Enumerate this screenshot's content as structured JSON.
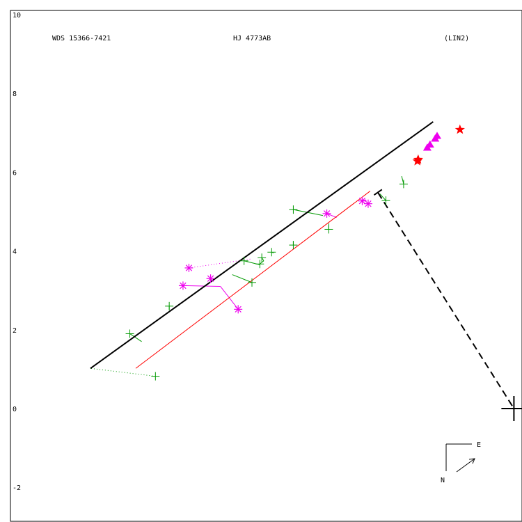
{
  "header": {
    "left": "WDS 15366-7421",
    "center": "HJ 4773AB",
    "right": "(LIN2)"
  },
  "compass": {
    "east": "E",
    "north": "N"
  },
  "chart_data": {
    "type": "scatter",
    "title": "",
    "xlabel": "",
    "ylabel": "",
    "ylim": [
      -2.8,
      10.2
    ],
    "y_ticks": [
      -2,
      0,
      2,
      4,
      6,
      8,
      10
    ],
    "y_tick_labels": [
      "-2",
      "0",
      "2",
      "4",
      "6",
      "8",
      "10"
    ],
    "grid": false,
    "legend": "none",
    "colors": {
      "fit_line": "#000000",
      "ephemeris_line": "#ff0000",
      "plus_markers": "#009900",
      "asterisk_markers": "#ee00ee",
      "triangle_markers": "#ee00ee",
      "star_markers": "#ff0000",
      "origin_marker": "#000000"
    },
    "fit_line": [
      [
        -9.1,
        1.02
      ],
      [
        -0.4,
        7.28
      ]
    ],
    "ephemeris_line": [
      [
        -7.95,
        1.02
      ],
      [
        -2.0,
        5.52
      ]
    ],
    "perpendicular_dashed": [
      [
        -1.8,
        5.48
      ],
      [
        1.65,
        0.0
      ]
    ],
    "origin": [
      1.65,
      0.0
    ],
    "plus_points": [
      {
        "x": -7.45,
        "y": 0.82,
        "fit": [
          -9.1,
          1.02
        ]
      },
      {
        "x": -8.1,
        "y": 1.9,
        "fit": [
          -7.8,
          1.7
        ]
      },
      {
        "x": -7.1,
        "y": 2.6,
        "fit": [
          -7.1,
          2.5
        ]
      },
      {
        "x": -5.2,
        "y": 3.75,
        "fit": [
          -4.8,
          3.65
        ]
      },
      {
        "x": -4.8,
        "y": 3.67,
        "fit": [
          -4.7,
          3.75
        ]
      },
      {
        "x": -4.75,
        "y": 3.83,
        "fit": [
          -4.7,
          3.75
        ]
      },
      {
        "x": -5.0,
        "y": 3.2,
        "fit": [
          -5.5,
          3.4
        ]
      },
      {
        "x": -4.5,
        "y": 3.97,
        "fit": [
          -4.45,
          3.95
        ]
      },
      {
        "x": -3.95,
        "y": 4.15,
        "fit": [
          -3.95,
          4.25
        ]
      },
      {
        "x": -3.95,
        "y": 5.05,
        "fit": [
          -3.2,
          4.9
        ]
      },
      {
        "x": -3.05,
        "y": 4.55,
        "fit": [
          -3.05,
          4.7
        ]
      },
      {
        "x": -1.6,
        "y": 5.28,
        "fit": [
          -1.75,
          5.45
        ]
      },
      {
        "x": -1.15,
        "y": 5.7,
        "fit": [
          -1.2,
          5.9
        ]
      }
    ],
    "asterisk_points": [
      {
        "x": -6.6,
        "y": 3.57,
        "fit": [
          -5.0,
          3.8
        ],
        "link": "dotted"
      },
      {
        "x": -6.75,
        "y": 3.12,
        "fit": [
          -5.8,
          3.1
        ],
        "link": "solid"
      },
      {
        "x": -6.05,
        "y": 3.3,
        "fit": [
          -6.0,
          3.25
        ],
        "link": "solid"
      },
      {
        "x": -5.35,
        "y": 2.52,
        "fit": [
          -5.8,
          3.1
        ],
        "link": "solid"
      },
      {
        "x": -3.1,
        "y": 4.95,
        "fit": [
          -2.85,
          4.85
        ],
        "link": "solid"
      },
      {
        "x": -2.2,
        "y": 5.27,
        "fit": [
          -2.1,
          5.3
        ],
        "link": "solid"
      },
      {
        "x": -2.05,
        "y": 5.2,
        "fit": [
          -2.0,
          5.25
        ],
        "link": "solid"
      }
    ],
    "triangle_points": [
      {
        "x": -0.55,
        "y": 6.62
      },
      {
        "x": -0.48,
        "y": 6.7
      },
      {
        "x": -0.35,
        "y": 6.85
      },
      {
        "x": -0.3,
        "y": 6.92
      }
    ],
    "star_points": [
      {
        "x": -0.8,
        "y": 6.28
      },
      {
        "x": -0.78,
        "y": 6.32
      },
      {
        "x": 0.28,
        "y": 7.08
      }
    ]
  }
}
